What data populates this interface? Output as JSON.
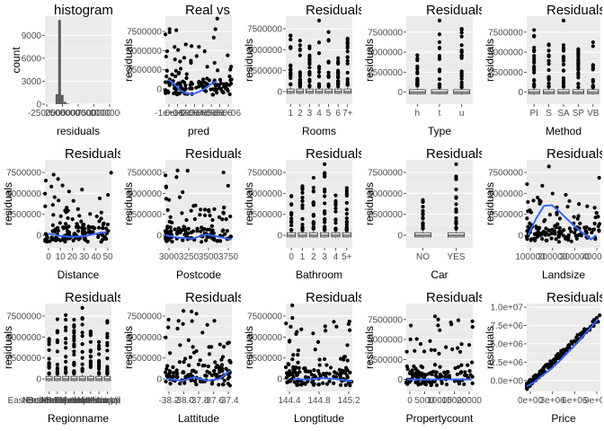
{
  "chart_data": [
    {
      "type": "bar",
      "title": "histogram",
      "xlabel": "residuals",
      "ylabel": "count",
      "ylim": [
        0,
        11500
      ],
      "xlim": [
        -2500000,
        10000000
      ],
      "yticks": [
        {
          "v": 0,
          "l": "0"
        },
        {
          "v": 3000,
          "l": "3000"
        },
        {
          "v": 6000,
          "l": "6000"
        },
        {
          "v": 9000,
          "l": "9000"
        }
      ],
      "xtick_labels": [
        "-2500000",
        "2500000",
        "5000000",
        "7500000",
        "10000000"
      ],
      "bins": [
        {
          "x0": -500000,
          "x1": 0,
          "count": 1300
        },
        {
          "x0": 0,
          "x1": 500000,
          "count": 11000
        },
        {
          "x0": 500000,
          "x1": 1000000,
          "count": 1200
        },
        {
          "x0": 1000000,
          "x1": 1500000,
          "count": 300
        },
        {
          "x0": 1500000,
          "x1": 2000000,
          "count": 80
        }
      ]
    },
    {
      "type": "scatter",
      "title": "Real vs",
      "xlabel": "pred",
      "ylabel": "residuals",
      "ylim": [
        -2000000,
        9500000
      ],
      "xlim": [
        -1500000,
        9500000
      ],
      "yticks": [
        {
          "v": 0,
          "l": "0"
        },
        {
          "v": 2500000,
          "l": "2500000"
        },
        {
          "v": 5000000,
          "l": "5000000"
        },
        {
          "v": 7500000,
          "l": "7500000"
        }
      ],
      "xtick_labels": [
        "-1e+06",
        "0e+00",
        "1e+06",
        "2e+06",
        "3e+06",
        "4e+06",
        "5e+06",
        "6e+06"
      ],
      "smooth": [
        [
          -1000000,
          1200000
        ],
        [
          0,
          600000
        ],
        [
          1000000,
          -200000
        ],
        [
          2000000,
          -600000
        ],
        [
          3000000,
          -700000
        ],
        [
          4000000,
          -400000
        ],
        [
          5000000,
          0
        ],
        [
          6000000,
          600000
        ],
        [
          7000000,
          1000000
        ]
      ]
    },
    {
      "type": "box",
      "title": "Residuals",
      "xlabel": "Rooms",
      "ylabel": "residuals",
      "ylim": [
        -1500000,
        9000000
      ],
      "yticks": [
        {
          "v": 0,
          "l": "0"
        },
        {
          "v": 2500000,
          "l": "2500000"
        },
        {
          "v": 5000000,
          "l": "5000000"
        },
        {
          "v": 7500000,
          "l": "7500000"
        }
      ],
      "categories": [
        "1",
        "2",
        "3",
        "4",
        "5",
        "6",
        "7+"
      ]
    },
    {
      "type": "box",
      "title": "Residuals",
      "xlabel": "Type",
      "ylabel": "residuals",
      "ylim": [
        -1500000,
        9500000
      ],
      "yticks": [
        {
          "v": 0,
          "l": "0"
        },
        {
          "v": 2500000,
          "l": "2500000"
        },
        {
          "v": 5000000,
          "l": "5000000"
        },
        {
          "v": 7500000,
          "l": "7500000"
        }
      ],
      "categories": [
        "h",
        "t",
        "u"
      ]
    },
    {
      "type": "box",
      "title": "Residuals",
      "xlabel": "Method",
      "ylabel": "residuals",
      "ylim": [
        -1500000,
        9500000
      ],
      "yticks": [
        {
          "v": 0,
          "l": "0"
        },
        {
          "v": 2500000,
          "l": "2500000"
        },
        {
          "v": 5000000,
          "l": "5000000"
        },
        {
          "v": 7500000,
          "l": "7500000"
        }
      ],
      "categories": [
        "PI",
        "S",
        "SA",
        "SP",
        "VB"
      ]
    },
    {
      "type": "scatter",
      "title": "Residuals",
      "xlabel": "Distance",
      "ylabel": "residuals",
      "ylim": [
        -1500000,
        9000000
      ],
      "xlim": [
        -3,
        52
      ],
      "yticks": [
        {
          "v": 0,
          "l": "0"
        },
        {
          "v": 2500000,
          "l": "2500000"
        },
        {
          "v": 5000000,
          "l": "5000000"
        },
        {
          "v": 7500000,
          "l": "7500000"
        }
      ],
      "xtick_labels": [
        "0",
        "10",
        "20",
        "30",
        "40",
        "50"
      ],
      "smooth": [
        [
          0,
          200000
        ],
        [
          10,
          -100000
        ],
        [
          20,
          -200000
        ],
        [
          30,
          -100000
        ],
        [
          40,
          200000
        ],
        [
          48,
          400000
        ]
      ]
    },
    {
      "type": "scatter",
      "title": "Residuals",
      "xlabel": "Postcode",
      "ylabel": "residuals",
      "ylim": [
        -1500000,
        9000000
      ],
      "xlim": [
        3000,
        3980
      ],
      "yticks": [
        {
          "v": 0,
          "l": "0"
        },
        {
          "v": 2500000,
          "l": "2500000"
        },
        {
          "v": 5000000,
          "l": "5000000"
        },
        {
          "v": 7500000,
          "l": "7500000"
        }
      ],
      "xtick_labels": [
        "3000",
        "3250",
        "3500",
        "3750"
      ],
      "smooth": [
        [
          3000,
          0
        ],
        [
          3200,
          -300000
        ],
        [
          3400,
          -400000
        ],
        [
          3600,
          100000
        ],
        [
          3800,
          -200000
        ],
        [
          3975,
          -500000
        ]
      ]
    },
    {
      "type": "box",
      "title": "Residuals",
      "xlabel": "Bathroom",
      "ylabel": "residuals",
      "ylim": [
        -1500000,
        9000000
      ],
      "yticks": [
        {
          "v": 0,
          "l": "0"
        },
        {
          "v": 2500000,
          "l": "2500000"
        },
        {
          "v": 5000000,
          "l": "5000000"
        },
        {
          "v": 7500000,
          "l": "7500000"
        }
      ],
      "categories": [
        "0",
        "1",
        "2",
        "3",
        "4",
        "5+"
      ]
    },
    {
      "type": "box",
      "title": "Residuals",
      "xlabel": "Car",
      "ylabel": "residuals",
      "ylim": [
        -1500000,
        9000000
      ],
      "yticks": [
        {
          "v": 0,
          "l": "0"
        },
        {
          "v": 2500000,
          "l": "2500000"
        },
        {
          "v": 5000000,
          "l": "5000000"
        },
        {
          "v": 7500000,
          "l": "7500000"
        }
      ],
      "categories": [
        "NO",
        "YES"
      ]
    },
    {
      "type": "scatter",
      "title": "Residuals",
      "xlabel": "Landsize",
      "ylabel": "residuals",
      "ylim": [
        -1500000,
        9000000
      ],
      "xlim": [
        -10000,
        460000
      ],
      "yticks": [
        {
          "v": 0,
          "l": "0"
        },
        {
          "v": 2500000,
          "l": "2500000"
        },
        {
          "v": 5000000,
          "l": "5000000"
        },
        {
          "v": 7500000,
          "l": "7500000"
        }
      ],
      "xtick_labels": [
        "100000",
        "200000",
        "300000",
        "400000"
      ],
      "smooth": [
        [
          0,
          0
        ],
        [
          50000,
          2000000
        ],
        [
          100000,
          3500000
        ],
        [
          150000,
          3600000
        ],
        [
          200000,
          2800000
        ],
        [
          300000,
          1000000
        ],
        [
          400000,
          -500000
        ],
        [
          433000,
          0
        ]
      ]
    },
    {
      "type": "box",
      "title": "Residuals",
      "xlabel": "Regionname",
      "ylabel": "residuals",
      "ylim": [
        -1500000,
        9000000
      ],
      "yticks": [
        {
          "v": 0,
          "l": "0"
        },
        {
          "v": 2500000,
          "l": "2500000"
        },
        {
          "v": 5000000,
          "l": "5000000"
        },
        {
          "v": 7500000,
          "l": "7500000"
        }
      ],
      "categories": [
        "Eastern Metropolitan",
        "Eastern Victoria",
        "Northern Metropolitan",
        "Northern Victoria",
        "South-Eastern Metropolitan",
        "Southern Metropolitan",
        "Western Metropolitan",
        "Western Victoria"
      ]
    },
    {
      "type": "scatter",
      "title": "Residuals",
      "xlabel": "Lattitude",
      "ylabel": "residuals",
      "ylim": [
        -1500000,
        9000000
      ],
      "xlim": [
        -38.2,
        -37.4
      ],
      "yticks": [
        {
          "v": 0,
          "l": "0"
        },
        {
          "v": 2500000,
          "l": "2500000"
        },
        {
          "v": 5000000,
          "l": "5000000"
        },
        {
          "v": 7500000,
          "l": "7500000"
        }
      ],
      "xtick_labels": [
        "-38.2",
        "-38.0",
        "-37.8",
        "-37.6",
        "-37.4"
      ],
      "smooth": [
        [
          -38.18,
          0
        ],
        [
          -38.0,
          -200000
        ],
        [
          -37.85,
          200000
        ],
        [
          -37.7,
          -200000
        ],
        [
          -37.55,
          0
        ],
        [
          -37.42,
          1000000
        ]
      ]
    },
    {
      "type": "scatter",
      "title": "Residuals",
      "xlabel": "Longtitude",
      "ylabel": "residuals",
      "ylim": [
        -1500000,
        9000000
      ],
      "xlim": [
        144.3,
        145.5
      ],
      "yticks": [
        {
          "v": 0,
          "l": "0"
        },
        {
          "v": 2500000,
          "l": "2500000"
        },
        {
          "v": 5000000,
          "l": "5000000"
        },
        {
          "v": 7500000,
          "l": "7500000"
        }
      ],
      "xtick_labels": [
        "144.4",
        "144.8",
        "145.2"
      ],
      "smooth": [
        [
          144.43,
          0
        ],
        [
          144.7,
          -100000
        ],
        [
          144.95,
          100000
        ],
        [
          145.2,
          0
        ],
        [
          145.5,
          -300000
        ]
      ]
    },
    {
      "type": "scatter",
      "title": "Residuals",
      "xlabel": "Propertycount",
      "ylabel": "residuals",
      "ylim": [
        -1500000,
        9500000
      ],
      "xlim": [
        0,
        22000
      ],
      "yticks": [
        {
          "v": 0,
          "l": "0"
        },
        {
          "v": 2500000,
          "l": "2500000"
        },
        {
          "v": 5000000,
          "l": "5000000"
        },
        {
          "v": 7500000,
          "l": "7500000"
        }
      ],
      "xtick_labels": [
        "0",
        "5000",
        "10000",
        "15000",
        "20000"
      ],
      "smooth": [
        [
          300,
          0
        ],
        [
          5000,
          -20000
        ],
        [
          10000,
          0
        ],
        [
          15000,
          10000
        ],
        [
          21600,
          0
        ]
      ]
    },
    {
      "type": "scatter",
      "title": "Residuals",
      "xlabel": "Price",
      "ylabel": "residuals",
      "ylim": [
        -1500000,
        10500000
      ],
      "xlim": [
        0,
        9300000
      ],
      "yticks": [
        {
          "v": 0,
          "l": "0.0e+00"
        },
        {
          "v": 2500000,
          "l": "2.5e+06"
        },
        {
          "v": 5000000,
          "l": "5.0e+06"
        },
        {
          "v": 7500000,
          "l": "7.5e+06"
        },
        {
          "v": 10000000,
          "l": "1.0e+07"
        }
      ],
      "xtick_labels": [
        "0e+00",
        "3e+06",
        "6e+06",
        "9e+06"
      ],
      "smooth": [
        [
          0,
          -800000
        ],
        [
          1000000,
          -200000
        ],
        [
          2000000,
          700000
        ],
        [
          3000000,
          1500000
        ],
        [
          4000000,
          2500000
        ],
        [
          5000000,
          3600000
        ],
        [
          6000000,
          4700000
        ],
        [
          7000000,
          5900000
        ],
        [
          8000000,
          7100000
        ],
        [
          9000000,
          8400000
        ]
      ]
    }
  ]
}
